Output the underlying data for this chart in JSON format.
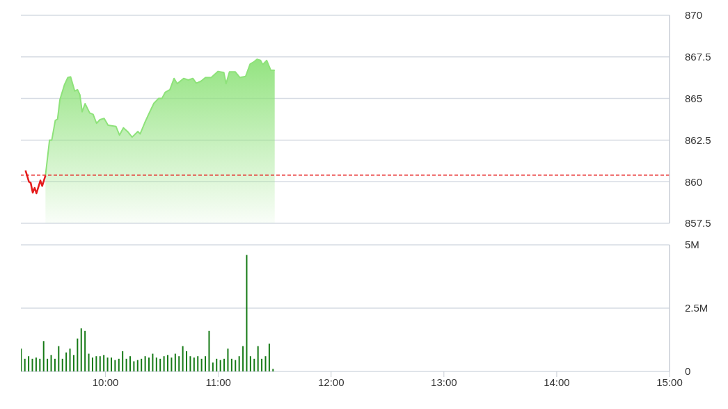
{
  "chart_data": [
    {
      "type": "area",
      "xlim": [
        9.25,
        15
      ],
      "ylim": [
        857.5,
        870
      ],
      "yticks": [
        857.5,
        860,
        862.5,
        865,
        867.5,
        870
      ],
      "tick_labels": "y",
      "grid": "y",
      "marker": "none",
      "ref_lines": [
        {
          "axis": "y",
          "value": 860.4,
          "color": "#e51c1c",
          "line_style": "dashed"
        }
      ],
      "series": [
        {
          "type": "line",
          "color": "#e51c1c",
          "x": [
            9.291,
            9.305,
            9.321,
            9.337,
            9.355,
            9.372,
            9.388,
            9.423,
            9.439,
            9.468
          ],
          "values": [
            860.67,
            860.37,
            860.0,
            859.93,
            859.34,
            859.63,
            859.3,
            860.07,
            859.74,
            860.37
          ]
        },
        {
          "color": "#8ee27a",
          "x": [
            9.468,
            9.504,
            9.524,
            9.555,
            9.575,
            9.596,
            9.636,
            9.666,
            9.691,
            9.727,
            9.752,
            9.773,
            9.793,
            9.819,
            9.86,
            9.89,
            9.921,
            9.951,
            9.988,
            10.023,
            10.093,
            10.124,
            10.159,
            10.195,
            10.236,
            10.287,
            10.307,
            10.348,
            10.388,
            10.429,
            10.47,
            10.5,
            10.53,
            10.571,
            10.608,
            10.636,
            10.693,
            10.734,
            10.774,
            10.805,
            10.846,
            10.886,
            10.937,
            10.998,
            11.049,
            11.069,
            11.099,
            11.151,
            11.191,
            11.242,
            11.282,
            11.313,
            11.343,
            11.374,
            11.394,
            11.429,
            11.465,
            11.5
          ],
          "values": [
            860.37,
            862.5,
            862.5,
            863.68,
            863.76,
            864.93,
            865.82,
            866.26,
            866.3,
            865.45,
            865.53,
            865.23,
            864.2,
            864.69,
            864.13,
            864.05,
            863.51,
            863.73,
            863.8,
            863.39,
            863.32,
            862.8,
            863.24,
            863.02,
            862.68,
            863.02,
            862.87,
            863.54,
            864.13,
            864.71,
            865.0,
            865.0,
            865.38,
            865.53,
            866.21,
            865.89,
            866.21,
            866.11,
            866.21,
            865.92,
            866.04,
            866.26,
            866.26,
            866.63,
            866.56,
            865.89,
            866.6,
            866.6,
            866.26,
            866.33,
            867.07,
            867.19,
            867.36,
            867.29,
            867.04,
            867.29,
            866.7,
            866.7
          ]
        }
      ]
    },
    {
      "type": "bar",
      "color": "#167a16",
      "xlim": [
        9.25,
        15
      ],
      "xticks": [
        {
          "value": 10,
          "label": "10:00"
        },
        {
          "value": 11,
          "label": "11:00"
        },
        {
          "value": 12,
          "label": "12:00"
        },
        {
          "value": 13,
          "label": "13:00"
        },
        {
          "value": 14,
          "label": "14:00"
        },
        {
          "value": 15,
          "label": "15:00"
        }
      ],
      "ylim": [
        0,
        5
      ],
      "yticks": [
        0,
        {
          "value": 2.5,
          "label": "2.5M"
        },
        {
          "value": 5,
          "label": "5M"
        }
      ],
      "grid": "y",
      "x": [
        9.25,
        9.2833,
        9.3167,
        9.35,
        9.3833,
        9.4167,
        9.45,
        9.4833,
        9.5167,
        9.55,
        9.5833,
        9.6167,
        9.65,
        9.6833,
        9.7167,
        9.75,
        9.7833,
        9.8167,
        9.85,
        9.8833,
        9.9167,
        9.95,
        9.9833,
        10.0167,
        10.05,
        10.0833,
        10.1167,
        10.15,
        10.1833,
        10.2167,
        10.25,
        10.2833,
        10.3167,
        10.35,
        10.3833,
        10.4167,
        10.45,
        10.4833,
        10.5167,
        10.55,
        10.5833,
        10.6167,
        10.65,
        10.6833,
        10.7167,
        10.75,
        10.7833,
        10.8167,
        10.85,
        10.8833,
        10.9167,
        10.95,
        10.9833,
        11.0167,
        11.05,
        11.0833,
        11.1167,
        11.15,
        11.1833,
        11.2167,
        11.25,
        11.2833,
        11.3167,
        11.35,
        11.3833,
        11.4167,
        11.45,
        11.4833
      ],
      "values": [
        0.9,
        0.5,
        0.6,
        0.5,
        0.55,
        0.5,
        1.2,
        0.5,
        0.65,
        0.5,
        1.0,
        0.5,
        0.75,
        0.9,
        0.65,
        1.3,
        1.7,
        1.6,
        0.7,
        0.55,
        0.6,
        0.6,
        0.65,
        0.55,
        0.55,
        0.45,
        0.5,
        0.8,
        0.5,
        0.6,
        0.4,
        0.45,
        0.5,
        0.6,
        0.55,
        0.7,
        0.55,
        0.5,
        0.6,
        0.65,
        0.55,
        0.7,
        0.6,
        1.0,
        0.8,
        0.6,
        0.55,
        0.6,
        0.5,
        0.6,
        1.6,
        0.35,
        0.5,
        0.45,
        0.5,
        0.9,
        0.5,
        0.45,
        0.6,
        1.0,
        4.6,
        0.6,
        0.5,
        1.0,
        0.5,
        0.6,
        1.1,
        0.1
      ]
    }
  ]
}
